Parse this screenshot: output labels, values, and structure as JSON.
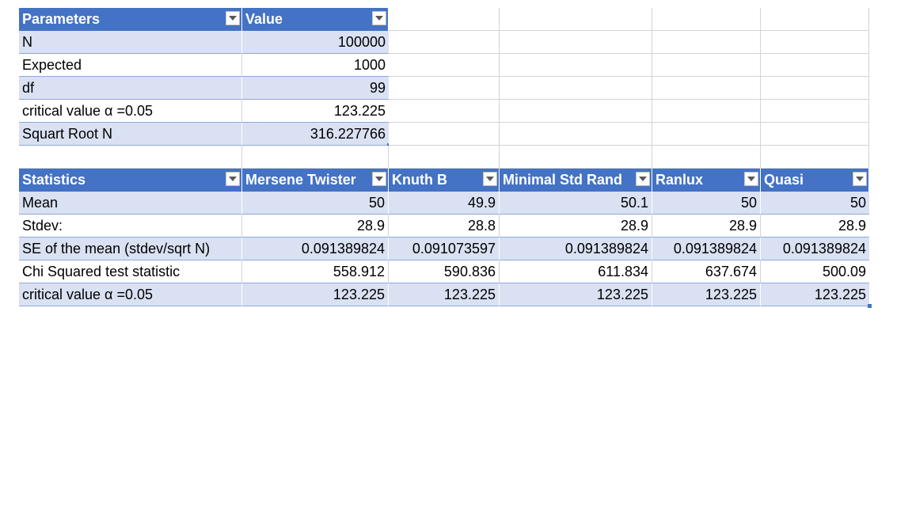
{
  "parameters_table": {
    "headers": [
      "Parameters",
      "Value"
    ],
    "rows": [
      {
        "label": "N",
        "value": "100000"
      },
      {
        "label": "Expected",
        "value": "1000"
      },
      {
        "label": "df",
        "value": "99"
      },
      {
        "label": "critical value α =0.05",
        "value": "123.225"
      },
      {
        "label": "Squart Root N",
        "value": "316.227766"
      }
    ]
  },
  "statistics_table": {
    "headers": [
      "Statistics",
      "Mersene Twister",
      "Knuth B",
      "Minimal Std Rand",
      "Ranlux",
      "Quasi"
    ],
    "rows": [
      {
        "label": "Mean",
        "values": [
          "50",
          "49.9",
          "50.1",
          "50",
          "50"
        ]
      },
      {
        "label": "Stdev:",
        "values": [
          "28.9",
          "28.8",
          "28.9",
          "28.9",
          "28.9"
        ]
      },
      {
        "label": "SE of the mean (stdev/sqrt N)",
        "values": [
          "0.091389824",
          "0.091073597",
          "0.091389824",
          "0.091389824",
          "0.091389824"
        ]
      },
      {
        "label": "Chi Squared test statistic",
        "values": [
          "558.912",
          "590.836",
          "611.834",
          "637.674",
          "500.09"
        ]
      },
      {
        "label": "critical value α =0.05",
        "values": [
          "123.225",
          "123.225",
          "123.225",
          "123.225",
          "123.225"
        ]
      }
    ]
  },
  "colors": {
    "header": "#4472c4",
    "band": "#d9e1f2",
    "grid": "#d4d4d4"
  },
  "icons": {
    "filter": "filter-dropdown-icon"
  }
}
